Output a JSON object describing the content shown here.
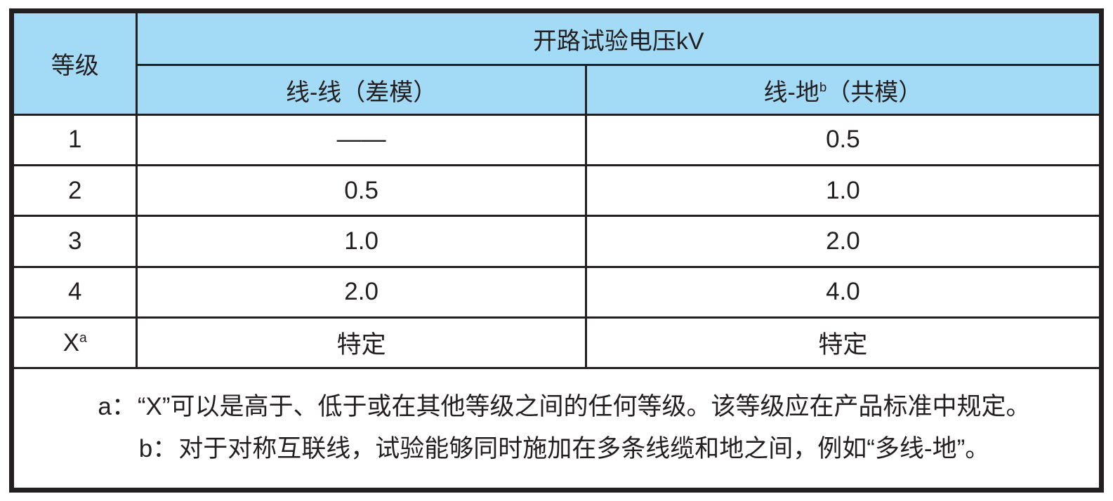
{
  "colors": {
    "header_bg": "#a3daf5",
    "border": "#231f20",
    "text": "#231f20",
    "page_bg": "#ffffff"
  },
  "table": {
    "header": {
      "level": "等级",
      "group": "开路试验电压kV",
      "col_diff": "线-线（差模）",
      "col_common_base": "线-地",
      "col_common_sup": "b",
      "col_common_rest": "（共模）"
    },
    "rows": [
      {
        "level": "1",
        "diff": "——",
        "common": "0.5"
      },
      {
        "level": "2",
        "diff": "0.5",
        "common": "1.0"
      },
      {
        "level": "3",
        "diff": "1.0",
        "common": "2.0"
      },
      {
        "level": "4",
        "diff": "2.0",
        "common": "4.0"
      },
      {
        "level": "X",
        "level_sup": "a",
        "diff": "特定",
        "common": "特定"
      }
    ],
    "footnotes": [
      {
        "label": "a：",
        "text": "“X”可以是高于、低于或在其他等级之间的任何等级。该等级应在产品标准中规定。"
      },
      {
        "label": "b：",
        "text": "对于对称互联线，试验能够同时施加在多条线缆和地之间，例如“多线-地”。"
      }
    ]
  }
}
